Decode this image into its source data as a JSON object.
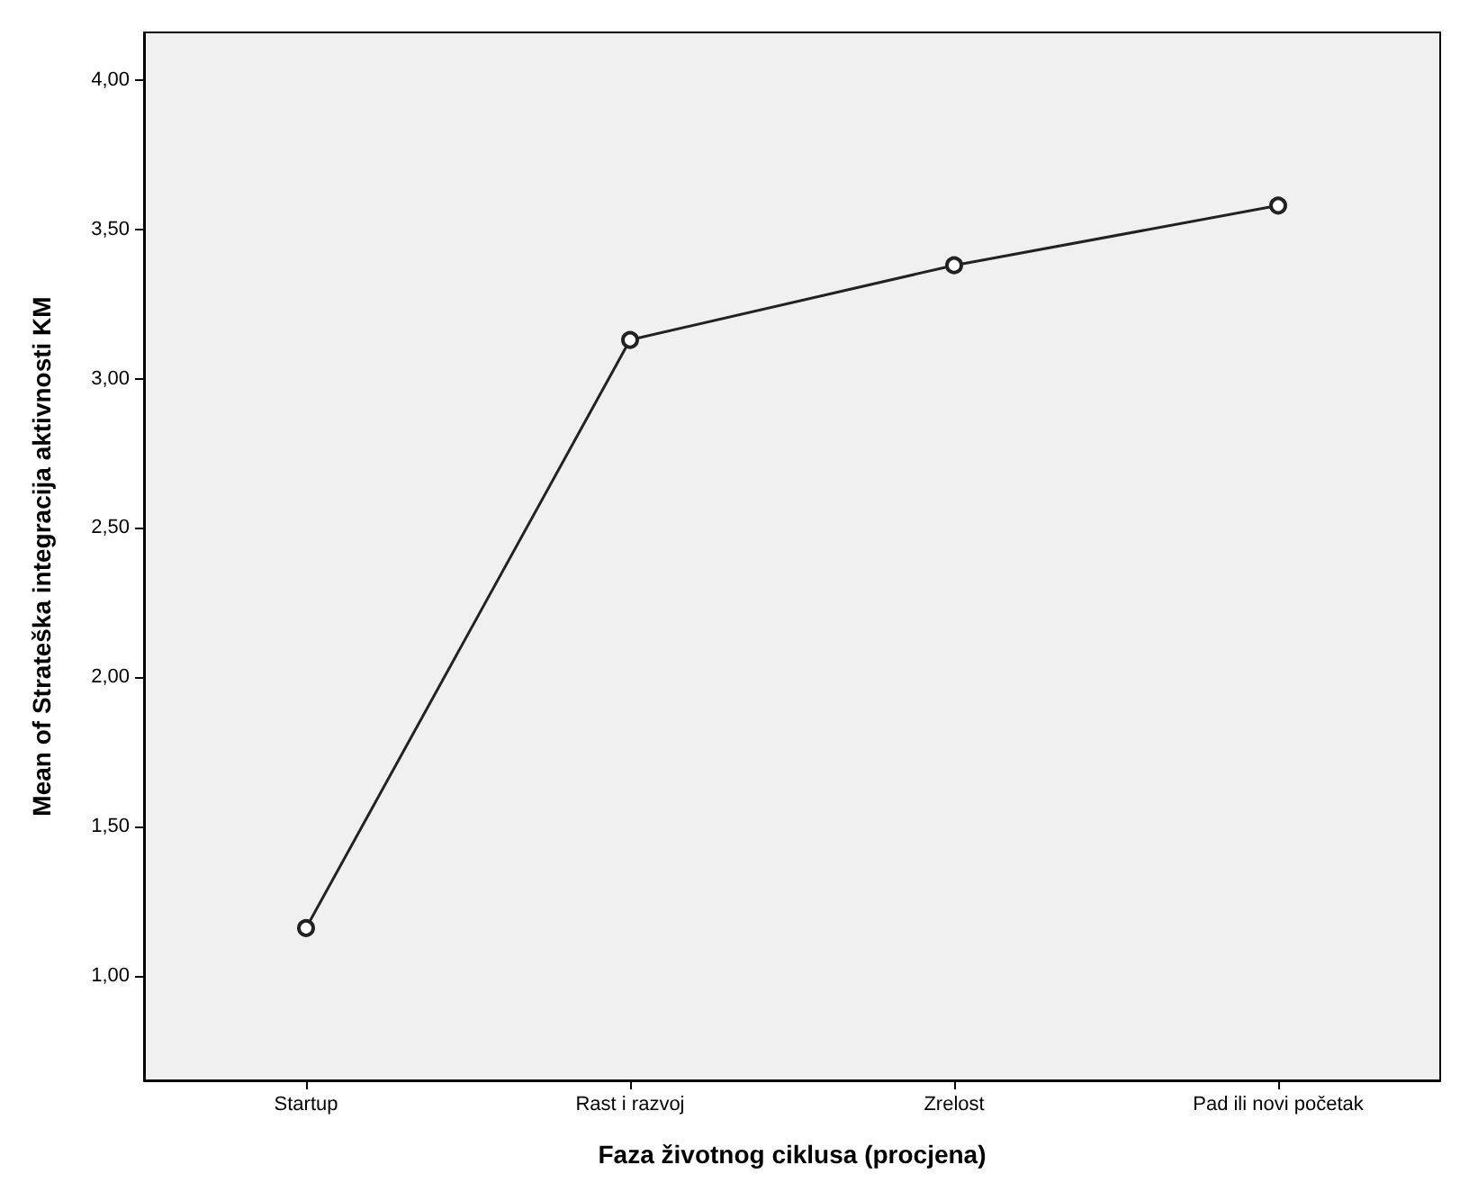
{
  "chart_data": {
    "type": "line",
    "xlabel": "Faza životnog ciklusa (procjena)",
    "ylabel": "Mean of Strateška integracija aktivnosti KM",
    "categories": [
      "Startup",
      "Rast i razvoj",
      "Zrelost",
      "Pad ili novi početak"
    ],
    "series": [
      {
        "color": "#222222",
        "values": [
          1.16,
          3.13,
          3.38,
          3.58
        ]
      }
    ],
    "ylim": [
      0.65,
      4.16
    ],
    "yticks": [
      {
        "value": 1,
        "label": "1,00"
      },
      {
        "value": 1.5,
        "label": "1,50"
      },
      {
        "value": 2,
        "label": "2,00"
      },
      {
        "value": 2.5,
        "label": "2,50"
      },
      {
        "value": 3,
        "label": "3,00"
      },
      {
        "value": 3.5,
        "label": "3,50"
      },
      {
        "value": 4,
        "label": "4,00"
      }
    ],
    "grid": false,
    "marker": "circle",
    "line_style": "solid"
  }
}
